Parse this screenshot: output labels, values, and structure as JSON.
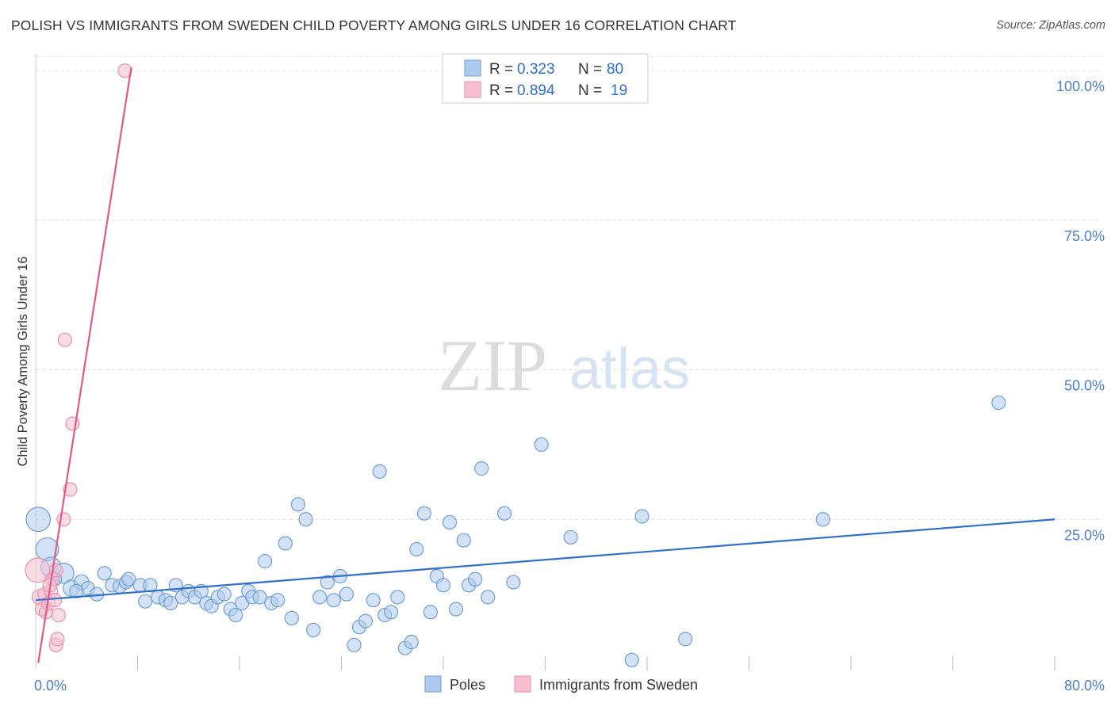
{
  "title": "POLISH VS IMMIGRANTS FROM SWEDEN CHILD POVERTY AMONG GIRLS UNDER 16 CORRELATION CHART",
  "source": "Source: ZipAtlas.com",
  "watermark": {
    "zip": "ZIP",
    "atlas": "atlas"
  },
  "colors": {
    "blue_fill": "#aecbef",
    "blue_stroke": "#6f9fd8",
    "blue_line": "#2e6fcf",
    "pink_fill": "#f8bfd0",
    "pink_stroke": "#e891ad",
    "pink_line": "#e2598a",
    "tick_label": "#4a7fd0",
    "grid": "#dddddd"
  },
  "legend_box": {
    "rows": [
      {
        "r_label": "R =",
        "r_value": "0.323",
        "n_label": "N =",
        "n_value": "80",
        "color": "#aecbef",
        "stroke": "#6f9fd8"
      },
      {
        "r_label": "R =",
        "r_value": "0.894",
        "n_label": "N =",
        "n_value": "19",
        "color": "#f8bfd0",
        "stroke": "#e891ad"
      }
    ]
  },
  "bottom_legend": [
    {
      "label": "Poles",
      "color": "#aecbef",
      "stroke": "#6f9fd8"
    },
    {
      "label": "Immigrants from Sweden",
      "color": "#f8bfd0",
      "stroke": "#e891ad"
    }
  ],
  "chart_data": {
    "type": "scatter",
    "ylabel": "Child Poverty Among Girls Under 16",
    "xlabel": "",
    "xlim": [
      0,
      80
    ],
    "ylim": [
      0,
      102
    ],
    "x_tick_labels": [
      {
        "v": 0,
        "label": "0.0%"
      },
      {
        "v": 80,
        "label": "80.0%"
      }
    ],
    "x_minor_ticks": [
      8,
      16,
      24,
      32,
      40,
      48,
      56,
      64,
      72,
      80
    ],
    "y_ticks": [
      {
        "v": 25,
        "label": "25.0%"
      },
      {
        "v": 50,
        "label": "50.0%"
      },
      {
        "v": 75,
        "label": "75.0%"
      },
      {
        "v": 100,
        "label": "100.0%"
      }
    ],
    "series": [
      {
        "name": "Poles",
        "r": 0.323,
        "n": 80,
        "trend": {
          "x0": 0,
          "y0": 11.5,
          "x1": 80,
          "y1": 25.0
        },
        "points": [
          [
            0.2,
            25.0,
            1.8
          ],
          [
            0.9,
            20.0,
            1.7
          ],
          [
            1.2,
            17.0,
            1.5
          ],
          [
            2.2,
            16.0,
            1.5
          ],
          [
            2.8,
            13.5,
            1.2
          ],
          [
            3.6,
            14.5,
            1.1
          ],
          [
            4.1,
            13.5,
            1.0
          ],
          [
            4.8,
            12.5,
            1.0
          ],
          [
            5.4,
            16.0,
            1.0
          ],
          [
            6.0,
            14.0,
            1.0
          ],
          [
            6.6,
            13.8,
            1.0
          ],
          [
            7.1,
            14.5,
            1.0
          ],
          [
            7.3,
            15.0,
            1.0
          ],
          [
            8.2,
            14.0,
            1.0
          ],
          [
            8.6,
            11.3,
            1.0
          ],
          [
            9.0,
            14.0,
            1.0
          ],
          [
            9.6,
            12.0,
            1.0
          ],
          [
            10.2,
            11.5,
            1.0
          ],
          [
            10.6,
            11.0,
            1.0
          ],
          [
            11.0,
            14.0,
            1.0
          ],
          [
            11.5,
            12.0,
            1.0
          ],
          [
            12.0,
            13.0,
            1.0
          ],
          [
            12.5,
            12.0,
            1.0
          ],
          [
            13.0,
            13.0,
            1.0
          ],
          [
            13.4,
            11.0,
            1.0
          ],
          [
            13.8,
            10.5,
            1.0
          ],
          [
            14.3,
            12.0,
            1.0
          ],
          [
            14.8,
            12.5,
            1.0
          ],
          [
            15.3,
            10.0,
            1.0
          ],
          [
            15.7,
            9.0,
            1.0
          ],
          [
            16.2,
            11.0,
            1.0
          ],
          [
            16.7,
            13.0,
            1.0
          ],
          [
            17.0,
            12.0,
            1.0
          ],
          [
            17.6,
            12.0,
            1.0
          ],
          [
            18.0,
            18.0,
            1.0
          ],
          [
            18.5,
            11.0,
            1.0
          ],
          [
            19.0,
            11.5,
            1.0
          ],
          [
            19.6,
            21.0,
            1.0
          ],
          [
            20.1,
            8.5,
            1.0
          ],
          [
            20.6,
            27.5,
            1.0
          ],
          [
            21.2,
            25.0,
            1.0
          ],
          [
            21.8,
            6.5,
            1.0
          ],
          [
            22.3,
            12.0,
            1.0
          ],
          [
            22.9,
            14.5,
            1.0
          ],
          [
            23.4,
            11.5,
            1.0
          ],
          [
            23.9,
            15.5,
            1.0
          ],
          [
            24.4,
            12.5,
            1.0
          ],
          [
            25.0,
            4.0,
            1.0
          ],
          [
            25.4,
            7.0,
            1.0
          ],
          [
            25.9,
            8.0,
            1.0
          ],
          [
            26.5,
            11.5,
            1.0
          ],
          [
            27.0,
            33.0,
            1.0
          ],
          [
            27.4,
            9.0,
            1.0
          ],
          [
            27.9,
            9.5,
            1.0
          ],
          [
            28.4,
            12.0,
            1.0
          ],
          [
            29.0,
            3.5,
            1.0
          ],
          [
            29.5,
            4.5,
            1.0
          ],
          [
            29.9,
            20.0,
            1.0
          ],
          [
            30.5,
            26.0,
            1.0
          ],
          [
            31.0,
            9.5,
            1.0
          ],
          [
            31.5,
            15.5,
            1.0
          ],
          [
            32.0,
            14.0,
            1.0
          ],
          [
            32.5,
            24.5,
            1.0
          ],
          [
            33.0,
            10.0,
            1.0
          ],
          [
            33.6,
            21.5,
            1.0
          ],
          [
            34.0,
            14.0,
            1.0
          ],
          [
            34.5,
            15.0,
            1.0
          ],
          [
            35.0,
            33.5,
            1.0
          ],
          [
            35.5,
            12.0,
            1.0
          ],
          [
            36.8,
            26.0,
            1.0
          ],
          [
            37.5,
            14.5,
            1.0
          ],
          [
            39.7,
            37.5,
            1.0
          ],
          [
            42.0,
            22.0,
            1.0
          ],
          [
            46.8,
            1.5,
            1.0
          ],
          [
            47.6,
            25.5,
            1.0
          ],
          [
            51.0,
            5.0,
            1.0
          ],
          [
            61.8,
            25.0,
            1.0
          ],
          [
            75.6,
            44.5,
            1.0
          ],
          [
            1.5,
            15.0,
            1.0
          ],
          [
            3.2,
            13.0,
            1.0
          ]
        ]
      },
      {
        "name": "Immigrants from Sweden",
        "r": 0.894,
        "n": 19,
        "trend": {
          "x0": 0.2,
          "y0": 1.0,
          "x1": 7.5,
          "y1": 100.5
        },
        "points": [
          [
            0.15,
            16.5,
            1.8
          ],
          [
            0.3,
            12.0,
            1.1
          ],
          [
            0.5,
            10.0,
            1.0
          ],
          [
            0.7,
            12.5,
            1.0
          ],
          [
            0.8,
            9.5,
            1.0
          ],
          [
            1.0,
            11.0,
            1.0
          ],
          [
            1.2,
            13.0,
            1.0
          ],
          [
            1.3,
            15.0,
            1.0
          ],
          [
            1.5,
            11.5,
            1.0
          ],
          [
            1.6,
            16.5,
            1.0
          ],
          [
            1.6,
            4.0,
            1.0
          ],
          [
            1.7,
            5.0,
            1.0
          ],
          [
            1.8,
            9.0,
            1.0
          ],
          [
            2.2,
            25.0,
            1.0
          ],
          [
            2.3,
            55.0,
            1.0
          ],
          [
            2.7,
            30.0,
            1.0
          ],
          [
            2.9,
            41.0,
            1.0
          ],
          [
            7.0,
            100.0,
            1.0
          ],
          [
            1.1,
            14.0,
            1.0
          ]
        ]
      }
    ]
  }
}
